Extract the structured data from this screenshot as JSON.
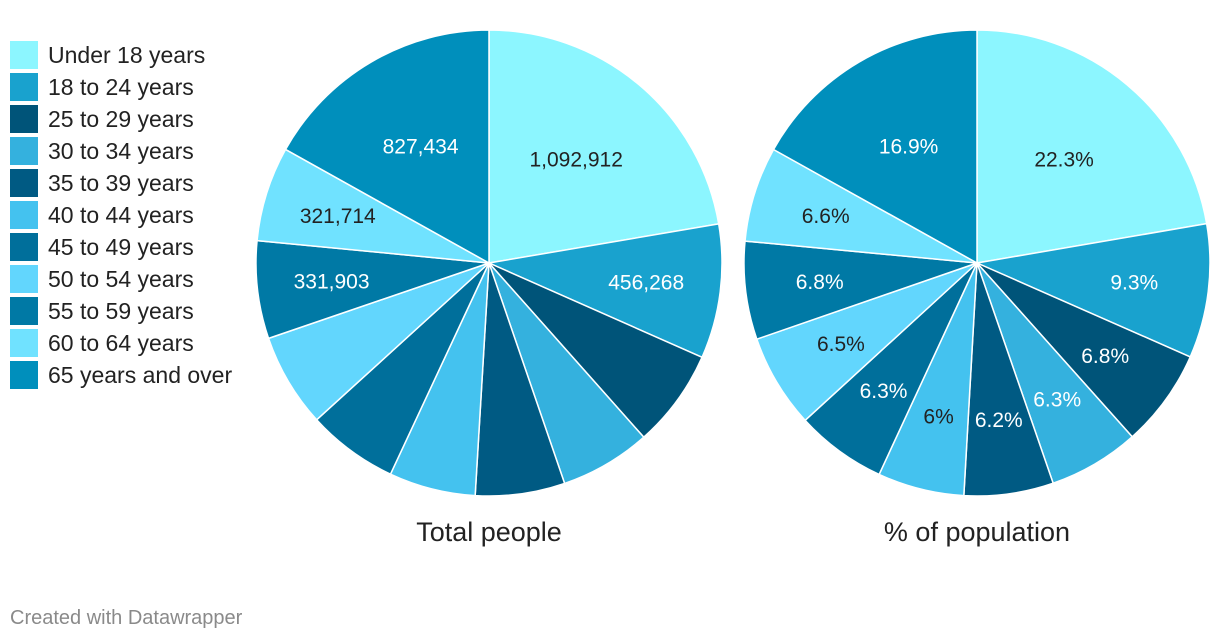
{
  "categories": [
    "Under 18 years",
    "18 to 24 years",
    "25 to 29 years",
    "30 to 34 years",
    "35 to 39 years",
    "40 to 44 years",
    "45 to 49 years",
    "50 to 54 years",
    "55 to 59 years",
    "60 to 64 years",
    "65 years and over"
  ],
  "colors": [
    "#8cf6ff",
    "#19a2ce",
    "#005479",
    "#34b1de",
    "#005a83",
    "#44c2ef",
    "#006f9b",
    "#62d6fd",
    "#0079a5",
    "#70e2ff",
    "#008fbc"
  ],
  "label_colors": [
    "#222222",
    "#ffffff",
    "#ffffff",
    "#ffffff",
    "#ffffff",
    "#222222",
    "#ffffff",
    "#222222",
    "#ffffff",
    "#222222",
    "#ffffff"
  ],
  "chart_data": [
    {
      "type": "pie",
      "title": "Total people",
      "categories": [
        "Under 18 years",
        "18 to 24 years",
        "25 to 29 years",
        "30 to 34 years",
        "35 to 39 years",
        "40 to 44 years",
        "45 to 49 years",
        "50 to 54 years",
        "55 to 59 years",
        "60 to 64 years",
        "65 years and over"
      ],
      "values": [
        1092912,
        456268,
        333200,
        308700,
        303800,
        294000,
        308700,
        318500,
        331903,
        321714,
        827434
      ],
      "labels": [
        "1,092,912",
        "456,268",
        "",
        "",
        "",
        "",
        "",
        "",
        "331,903",
        "321,714",
        "827,434"
      ]
    },
    {
      "type": "pie",
      "title": "% of population",
      "categories": [
        "Under 18 years",
        "18 to 24 years",
        "25 to 29 years",
        "30 to 34 years",
        "35 to 39 years",
        "40 to 44 years",
        "45 to 49 years",
        "50 to 54 years",
        "55 to 59 years",
        "60 to 64 years",
        "65 years and over"
      ],
      "values": [
        22.3,
        9.3,
        6.8,
        6.3,
        6.2,
        6,
        6.3,
        6.5,
        6.8,
        6.6,
        16.9
      ],
      "labels": [
        "22.3%",
        "9.3%",
        "6.8%",
        "6.3%",
        "6.2%",
        "6%",
        "6.3%",
        "6.5%",
        "6.8%",
        "6.6%",
        "16.9%"
      ]
    }
  ],
  "footer": "Created with Datawrapper"
}
